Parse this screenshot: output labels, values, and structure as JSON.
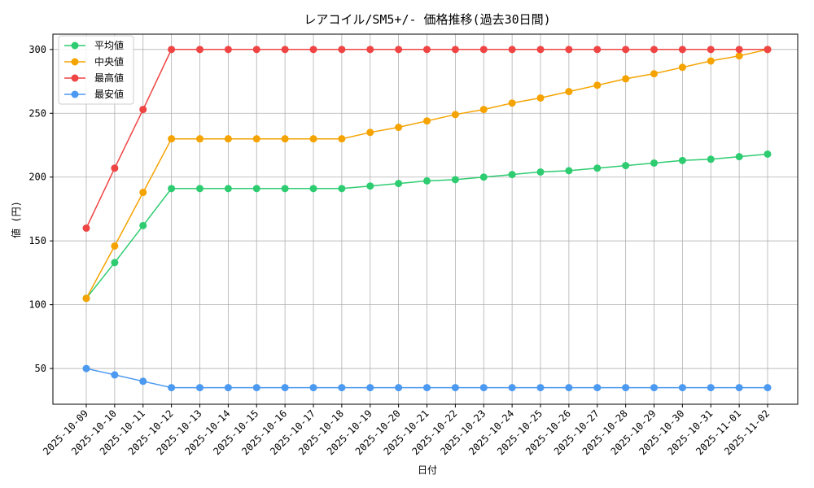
{
  "chart_data": {
    "type": "line",
    "title": "レアコイル/SM5+/- 価格推移(過去30日間)",
    "xlabel": "日付",
    "ylabel": "値 (円)",
    "ylim": [
      22,
      312
    ],
    "yticks": [
      50,
      100,
      150,
      200,
      250,
      300
    ],
    "grid": true,
    "legend_position": "top-left",
    "categories": [
      "2025-10-09",
      "2025-10-10",
      "2025-10-11",
      "2025-10-12",
      "2025-10-13",
      "2025-10-14",
      "2025-10-15",
      "2025-10-16",
      "2025-10-17",
      "2025-10-18",
      "2025-10-19",
      "2025-10-20",
      "2025-10-21",
      "2025-10-22",
      "2025-10-23",
      "2025-10-24",
      "2025-10-25",
      "2025-10-26",
      "2025-10-27",
      "2025-10-28",
      "2025-10-29",
      "2025-10-30",
      "2025-10-31",
      "2025-11-01",
      "2025-11-02"
    ],
    "series": [
      {
        "name": "平均値",
        "color": "#2ecc71",
        "values": [
          105,
          133,
          162,
          191,
          191,
          191,
          191,
          191,
          191,
          191,
          193,
          195,
          197,
          198,
          200,
          202,
          204,
          205,
          207,
          209,
          211,
          213,
          214,
          216,
          218
        ]
      },
      {
        "name": "中央値",
        "color": "#f5a300",
        "values": [
          105,
          146,
          188,
          230,
          230,
          230,
          230,
          230,
          230,
          230,
          235,
          239,
          244,
          249,
          253,
          258,
          262,
          267,
          272,
          277,
          281,
          286,
          291,
          295,
          300
        ]
      },
      {
        "name": "最高値",
        "color": "#ef4444",
        "values": [
          160,
          207,
          253,
          300,
          300,
          300,
          300,
          300,
          300,
          300,
          300,
          300,
          300,
          300,
          300,
          300,
          300,
          300,
          300,
          300,
          300,
          300,
          300,
          300,
          300
        ]
      },
      {
        "name": "最安値",
        "color": "#4b99f0",
        "values": [
          50,
          45,
          40,
          35,
          35,
          35,
          35,
          35,
          35,
          35,
          35,
          35,
          35,
          35,
          35,
          35,
          35,
          35,
          35,
          35,
          35,
          35,
          35,
          35,
          35
        ]
      }
    ]
  }
}
